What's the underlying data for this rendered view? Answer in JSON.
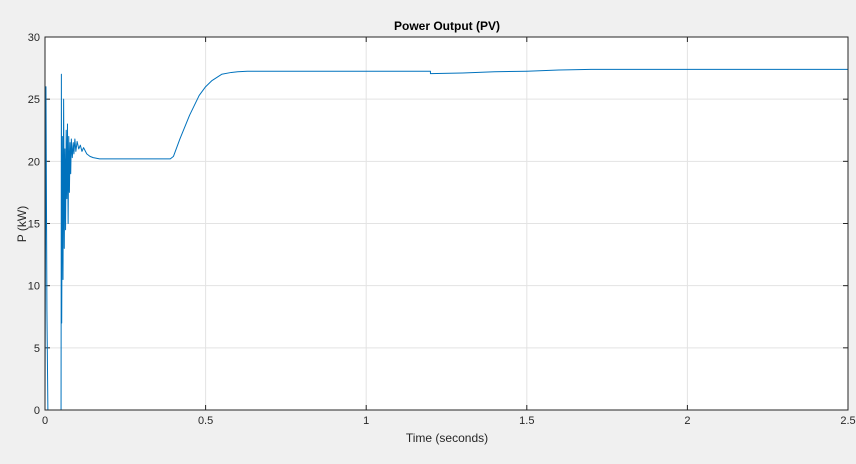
{
  "chart_data": {
    "type": "line",
    "title": "Power Output (PV)",
    "xlabel": "Time (seconds)",
    "ylabel": "P (kW)",
    "xlim": [
      0,
      2.5
    ],
    "ylim": [
      0,
      30
    ],
    "xticks": [
      0,
      0.5,
      1,
      1.5,
      2,
      2.5
    ],
    "yticks": [
      0,
      5,
      10,
      15,
      20,
      25,
      30
    ],
    "xtick_labels": [
      "0",
      "0.5",
      "1",
      "1.5",
      "2",
      "2.5"
    ],
    "ytick_labels": [
      "0",
      "5",
      "10",
      "15",
      "20",
      "25",
      "30"
    ],
    "grid": true,
    "colors": {
      "series": "#0072bd",
      "background": "#f0f0f0",
      "plot": "#ffffff",
      "grid": "#e3e3e3"
    },
    "series": [
      {
        "x": [
          0,
          0.003,
          0.006,
          0.009,
          0.012,
          0.05,
          0.051,
          0.052,
          0.054,
          0.056,
          0.058,
          0.06,
          0.062,
          0.064,
          0.066,
          0.068,
          0.07,
          0.072,
          0.074,
          0.076,
          0.078,
          0.08,
          0.082,
          0.085,
          0.088,
          0.09,
          0.093,
          0.096,
          0.1,
          0.105,
          0.11,
          0.115,
          0.12,
          0.13,
          0.14,
          0.15,
          0.17,
          0.2,
          0.25,
          0.3,
          0.35,
          0.39,
          0.4,
          0.42,
          0.45,
          0.48,
          0.5,
          0.52,
          0.55,
          0.58,
          0.6,
          0.63,
          0.66,
          0.7,
          0.8,
          1.0,
          1.2,
          1.2,
          1.3,
          1.4,
          1.5,
          1.6,
          1.7,
          1.8,
          2.0,
          2.2,
          2.5
        ],
        "y": [
          0,
          26,
          8,
          0,
          0,
          0,
          27,
          7,
          22,
          10.5,
          25,
          13,
          21,
          14.5,
          22.5,
          17,
          23,
          15,
          22,
          17.5,
          21.5,
          19,
          21.8,
          20.3,
          21.5,
          20.6,
          21.8,
          20.8,
          21.6,
          21,
          21.3,
          20.8,
          21.1,
          20.6,
          20.4,
          20.3,
          20.2,
          20.2,
          20.2,
          20.2,
          20.2,
          20.2,
          20.4,
          21.8,
          23.7,
          25.3,
          26,
          26.5,
          27,
          27.15,
          27.2,
          27.25,
          27.25,
          27.25,
          27.25,
          27.25,
          27.25,
          27.05,
          27.1,
          27.2,
          27.25,
          27.35,
          27.4,
          27.4,
          27.4,
          27.4,
          27.4
        ]
      }
    ]
  }
}
